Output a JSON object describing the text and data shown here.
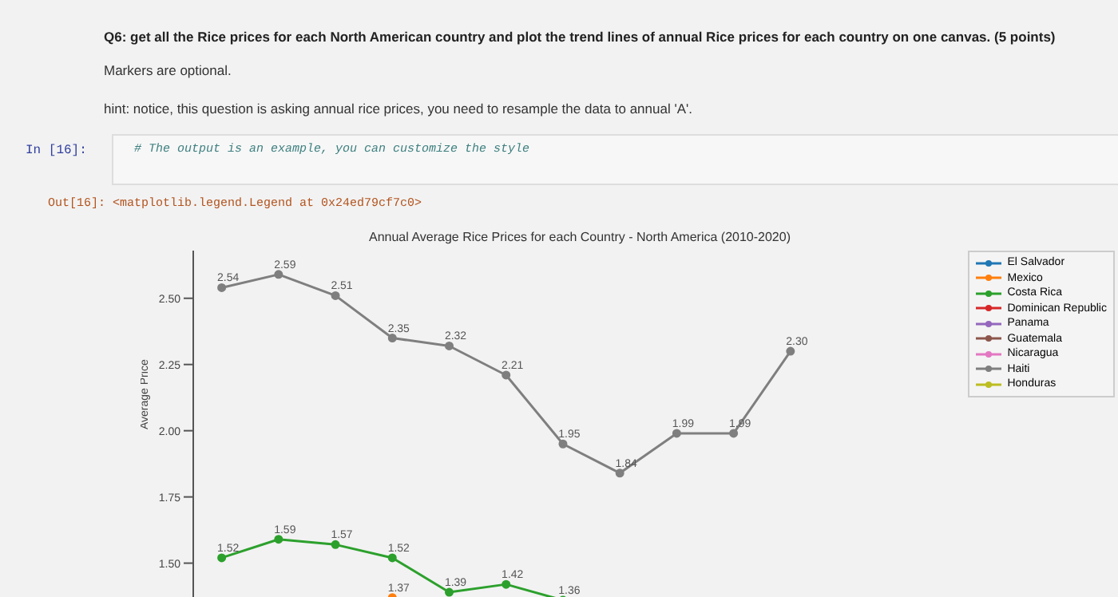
{
  "chart_data": {
    "type": "line",
    "title": "Annual Average Rice Prices for each Country - North America (2010-2020)",
    "ylabel": "Average Price",
    "annotations": [
      "Q6: get all the Rice prices for each North American country and plot the trend lines of annual Rice prices for each country on one canvas. (5 points)",
      "Markers are optional.",
      "hint: notice, this question is asking annual rice prices, you need to resample the data to annual 'A'.",
      "In [16]:",
      "# The output is an example, you can customize the style",
      "Out[16]: <matplotlib.legend.Legend at 0x24ed79cf7c0>"
    ],
    "categories": [
      null,
      null,
      null,
      null,
      null,
      null,
      null,
      null,
      null,
      null,
      null
    ],
    "series": [
      {
        "name": "El Salvador",
        "color": "#1f77b4",
        "values": [
          null,
          null,
          null,
          null,
          null,
          null,
          null,
          null,
          null,
          null,
          null
        ]
      },
      {
        "name": "Mexico",
        "color": "#ff7f0e",
        "values": [
          null,
          null,
          null,
          1.37,
          null,
          null,
          null,
          null,
          null,
          null,
          null
        ]
      },
      {
        "name": "Costa Rica",
        "color": "#2ca02c",
        "values": [
          1.52,
          1.59,
          1.57,
          1.52,
          1.39,
          1.42,
          1.36,
          null,
          null,
          null,
          null
        ]
      },
      {
        "name": "Dominican Republic",
        "color": "#d62728",
        "values": [
          null,
          null,
          null,
          null,
          null,
          null,
          null,
          null,
          null,
          null,
          null
        ]
      },
      {
        "name": "Panama",
        "color": "#9467bd",
        "values": [
          null,
          null,
          null,
          null,
          null,
          null,
          null,
          null,
          null,
          null,
          null
        ]
      },
      {
        "name": "Guatemala",
        "color": "#8c564b",
        "values": [
          null,
          null,
          null,
          null,
          null,
          null,
          null,
          null,
          null,
          null,
          null
        ]
      },
      {
        "name": "Nicaragua",
        "color": "#e377c2",
        "values": [
          null,
          null,
          null,
          null,
          null,
          null,
          null,
          null,
          null,
          null,
          null
        ]
      },
      {
        "name": "Haiti",
        "color": "#7f7f7f",
        "values": [
          2.54,
          2.59,
          2.51,
          2.35,
          2.32,
          2.21,
          1.95,
          1.84,
          1.99,
          1.99,
          2.3
        ],
        "value_labels": [
          "2.54",
          "2.59",
          "2.51",
          "2.35",
          "2.32",
          "2.21",
          "1.95",
          "1.84",
          "1.99",
          "1.99",
          "2.30"
        ]
      },
      {
        "name": "Honduras",
        "color": "#bcbd22",
        "values": [
          null,
          null,
          null,
          null,
          null,
          null,
          null,
          null,
          null,
          null,
          null
        ]
      }
    ],
    "ylim": [
      1.33,
      2.68
    ],
    "yticks": [
      {
        "value": 1.5,
        "label": "1.50"
      },
      {
        "value": 1.75,
        "label": "1.75"
      },
      {
        "value": 2.0,
        "label": "2.00"
      },
      {
        "value": 2.25,
        "label": "2.25"
      },
      {
        "value": 2.5,
        "label": "2.50"
      }
    ],
    "tick_labels": "y",
    "data_labels": true,
    "legend": "right",
    "marker": "circle",
    "line_style": "solid",
    "grid": false
  }
}
